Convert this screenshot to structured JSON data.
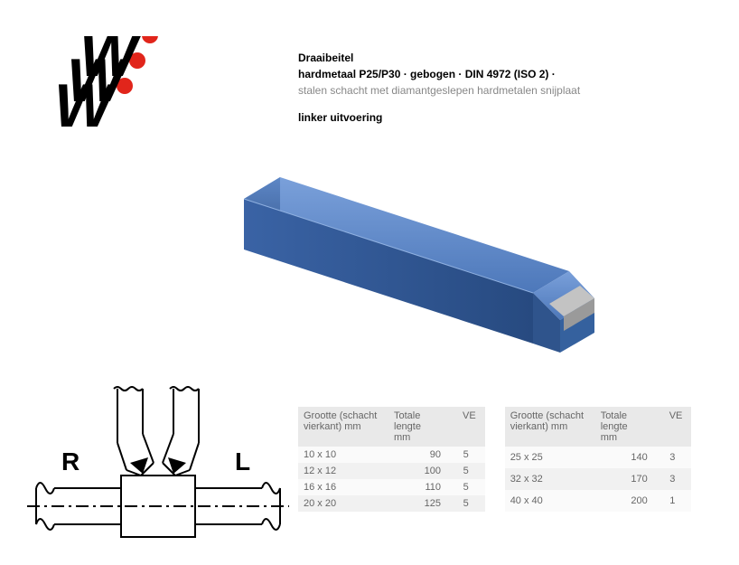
{
  "logo": {
    "letter_color": "#000000",
    "dot_color": "#e1251b"
  },
  "text": {
    "title": "Draaibeitel",
    "subtitle_parts": [
      "hardmetaal P25/P30",
      "gebogen",
      "DIN 4972 (ISO 2)"
    ],
    "subtitle_sep": " · ",
    "description": "stalen schacht met diamantgeslepen hardmetalen snijplaat",
    "variant": "linker uitvoering"
  },
  "product": {
    "base_color": "#3966b0",
    "light_color": "#6b94d0",
    "dark_color": "#2a4d85",
    "tip_color": "#b9b9b9",
    "tip_shadow": "#8f8f8f"
  },
  "diagram": {
    "left_label": "R",
    "right_label": "L",
    "stroke": "#000000",
    "fill_insert": "#000000"
  },
  "tables": {
    "headers": {
      "col1_line1": "Grootte (schacht",
      "col1_line2": "vierkant) mm",
      "col2_line1": "Totale lengte",
      "col2_line2": "mm",
      "col3": "VE"
    },
    "left_rows": [
      {
        "size": "10 x 10",
        "len": "90",
        "ve": "5"
      },
      {
        "size": "12 x 12",
        "len": "100",
        "ve": "5"
      },
      {
        "size": "16 x 16",
        "len": "110",
        "ve": "5"
      },
      {
        "size": "20 x 20",
        "len": "125",
        "ve": "5"
      }
    ],
    "right_rows": [
      {
        "size": "25 x 25",
        "len": "140",
        "ve": "3"
      },
      {
        "size": "32 x 32",
        "len": "170",
        "ve": "3"
      },
      {
        "size": "40 x 40",
        "len": "200",
        "ve": "1"
      }
    ]
  }
}
